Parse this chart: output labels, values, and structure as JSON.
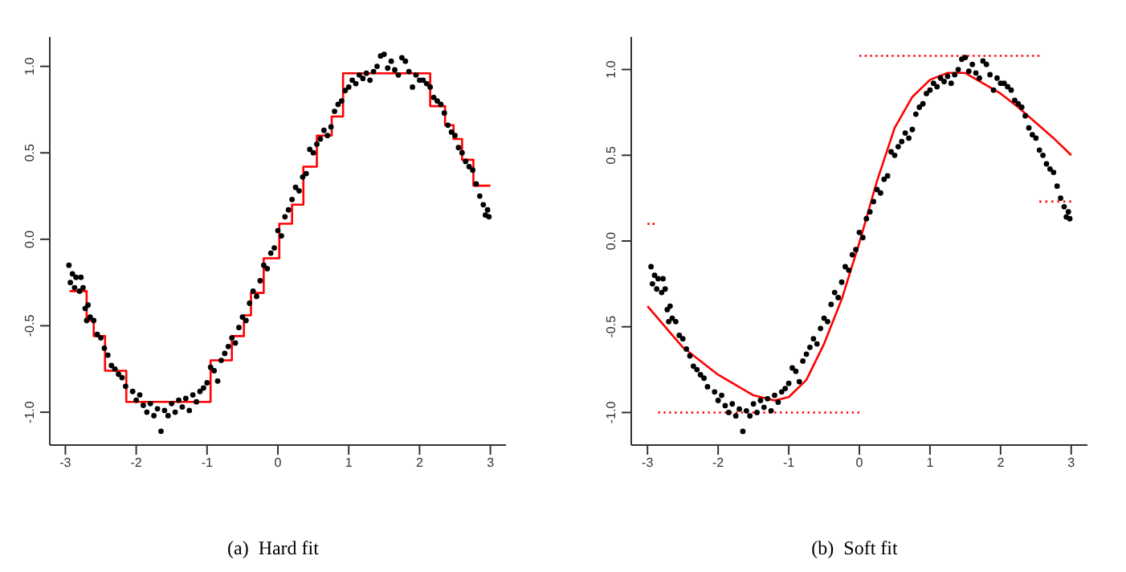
{
  "chart_data": [
    {
      "type": "scatter",
      "annotations": [
        "(a)  Hard fit"
      ],
      "xlim": [
        -3.22,
        3.22
      ],
      "ylim": [
        -1.19,
        1.17
      ],
      "xticks": [
        -3,
        -2,
        -1,
        0,
        1,
        2,
        3
      ],
      "yticks": [
        {
          "value": -1,
          "label": "-1.0"
        },
        {
          "value": -0.5,
          "label": "-0.5"
        },
        {
          "value": 0,
          "label": "0.0"
        },
        {
          "value": 0.5,
          "label": "0.5"
        },
        {
          "value": 1,
          "label": "1.0"
        }
      ],
      "series": [
        {
          "marker": "circle",
          "color": "#000000",
          "x": [
            -2.95,
            -2.93,
            -2.9,
            -2.87,
            -2.85,
            -2.8,
            -2.78,
            -2.75,
            -2.72,
            -2.7,
            -2.68,
            -2.65,
            -2.6,
            -2.55,
            -2.5,
            -2.45,
            -2.4,
            -2.35,
            -2.3,
            -2.25,
            -2.2,
            -2.15,
            -2.05,
            -2.0,
            -1.95,
            -1.9,
            -1.85,
            -1.8,
            -1.75,
            -1.7,
            -1.65,
            -1.6,
            -1.55,
            -1.5,
            -1.45,
            -1.4,
            -1.35,
            -1.3,
            -1.25,
            -1.2,
            -1.15,
            -1.1,
            -1.05,
            -1.0,
            -0.95,
            -0.9,
            -0.85,
            -0.8,
            -0.75,
            -0.7,
            -0.65,
            -0.6,
            -0.55,
            -0.5,
            -0.45,
            -0.4,
            -0.35,
            -0.3,
            -0.25,
            -0.2,
            -0.15,
            -0.1,
            -0.05,
            0.0,
            0.05,
            0.1,
            0.15,
            0.2,
            0.25,
            0.3,
            0.35,
            0.4,
            0.45,
            0.5,
            0.55,
            0.6,
            0.65,
            0.7,
            0.75,
            0.8,
            0.85,
            0.9,
            0.95,
            1.0,
            1.05,
            1.1,
            1.15,
            1.2,
            1.25,
            1.3,
            1.35,
            1.4,
            1.45,
            1.5,
            1.55,
            1.6,
            1.65,
            1.7,
            1.75,
            1.8,
            1.85,
            1.9,
            1.95,
            2.0,
            2.05,
            2.1,
            2.15,
            2.2,
            2.25,
            2.3,
            2.35,
            2.4,
            2.45,
            2.5,
            2.55,
            2.6,
            2.65,
            2.7,
            2.75,
            2.8,
            2.85,
            2.9,
            2.93,
            2.96,
            2.98
          ],
          "values": [
            -0.15,
            -0.25,
            -0.2,
            -0.28,
            -0.22,
            -0.3,
            -0.22,
            -0.28,
            -0.4,
            -0.47,
            -0.38,
            -0.45,
            -0.47,
            -0.55,
            -0.57,
            -0.63,
            -0.67,
            -0.73,
            -0.75,
            -0.78,
            -0.8,
            -0.85,
            -0.88,
            -0.93,
            -0.9,
            -0.96,
            -1.0,
            -0.95,
            -1.02,
            -0.98,
            -1.11,
            -0.99,
            -1.02,
            -0.95,
            -1.0,
            -0.93,
            -0.97,
            -0.92,
            -0.99,
            -0.9,
            -0.94,
            -0.88,
            -0.86,
            -0.83,
            -0.74,
            -0.76,
            -0.82,
            -0.7,
            -0.66,
            -0.62,
            -0.57,
            -0.6,
            -0.51,
            -0.45,
            -0.47,
            -0.37,
            -0.3,
            -0.33,
            -0.24,
            -0.15,
            -0.17,
            -0.08,
            -0.05,
            0.05,
            0.02,
            0.13,
            0.17,
            0.23,
            0.3,
            0.28,
            0.36,
            0.38,
            0.52,
            0.5,
            0.55,
            0.58,
            0.63,
            0.6,
            0.65,
            0.74,
            0.78,
            0.8,
            0.86,
            0.88,
            0.92,
            0.9,
            0.95,
            0.93,
            0.96,
            0.92,
            0.97,
            1.0,
            1.06,
            1.07,
            0.99,
            1.03,
            0.98,
            0.95,
            1.05,
            1.03,
            0.97,
            0.88,
            0.95,
            0.92,
            0.92,
            0.9,
            0.88,
            0.82,
            0.8,
            0.78,
            0.73,
            0.66,
            0.62,
            0.6,
            0.53,
            0.5,
            0.45,
            0.42,
            0.4,
            0.32,
            0.25,
            0.2,
            0.14,
            0.17,
            0.13
          ]
        },
        {
          "type": "step",
          "color": "#ff0000",
          "x": [
            -2.94,
            -2.7,
            -2.6,
            -2.44,
            -2.14,
            -0.95,
            -0.65,
            -0.48,
            -0.38,
            -0.2,
            0.02,
            0.2,
            0.36,
            0.55,
            0.76,
            0.92,
            2.15,
            2.36,
            2.48,
            2.6,
            2.76,
            3.0
          ],
          "values": [
            -0.3,
            -0.47,
            -0.56,
            -0.76,
            -0.94,
            -0.7,
            -0.56,
            -0.44,
            -0.31,
            -0.11,
            0.09,
            0.2,
            0.42,
            0.6,
            0.71,
            0.96,
            0.77,
            0.66,
            0.58,
            0.46,
            0.31,
            0.31
          ]
        }
      ]
    },
    {
      "type": "scatter",
      "annotations": [
        "(b)  Soft fit"
      ],
      "xlim": [
        -3.23,
        3.23
      ],
      "ylim": [
        -1.19,
        1.19
      ],
      "xticks": [
        -3,
        -2,
        -1,
        0,
        1,
        2,
        3
      ],
      "yticks": [
        {
          "value": -1,
          "label": "-1.0"
        },
        {
          "value": -0.5,
          "label": "-0.5"
        },
        {
          "value": 0,
          "label": "0.0"
        },
        {
          "value": 0.5,
          "label": "0.5"
        },
        {
          "value": 1,
          "label": "1.0"
        }
      ],
      "series": [
        {
          "marker": "circle",
          "color": "#000000",
          "x": [
            -2.95,
            -2.93,
            -2.9,
            -2.87,
            -2.85,
            -2.8,
            -2.78,
            -2.75,
            -2.72,
            -2.7,
            -2.68,
            -2.65,
            -2.6,
            -2.55,
            -2.5,
            -2.45,
            -2.4,
            -2.35,
            -2.3,
            -2.25,
            -2.2,
            -2.15,
            -2.05,
            -2.0,
            -1.95,
            -1.9,
            -1.85,
            -1.8,
            -1.75,
            -1.7,
            -1.65,
            -1.6,
            -1.55,
            -1.5,
            -1.45,
            -1.4,
            -1.35,
            -1.3,
            -1.25,
            -1.2,
            -1.15,
            -1.1,
            -1.05,
            -1.0,
            -0.95,
            -0.9,
            -0.85,
            -0.8,
            -0.75,
            -0.7,
            -0.65,
            -0.6,
            -0.55,
            -0.5,
            -0.45,
            -0.4,
            -0.35,
            -0.3,
            -0.25,
            -0.2,
            -0.15,
            -0.1,
            -0.05,
            0.0,
            0.05,
            0.1,
            0.15,
            0.2,
            0.25,
            0.3,
            0.35,
            0.4,
            0.45,
            0.5,
            0.55,
            0.6,
            0.65,
            0.7,
            0.75,
            0.8,
            0.85,
            0.9,
            0.95,
            1.0,
            1.05,
            1.1,
            1.15,
            1.2,
            1.25,
            1.3,
            1.35,
            1.4,
            1.45,
            1.5,
            1.55,
            1.6,
            1.65,
            1.7,
            1.75,
            1.8,
            1.85,
            1.9,
            1.95,
            2.0,
            2.05,
            2.1,
            2.15,
            2.2,
            2.25,
            2.3,
            2.35,
            2.4,
            2.45,
            2.5,
            2.55,
            2.6,
            2.65,
            2.7,
            2.75,
            2.8,
            2.85,
            2.9,
            2.93,
            2.96,
            2.98
          ],
          "values": [
            -0.15,
            -0.25,
            -0.2,
            -0.28,
            -0.22,
            -0.3,
            -0.22,
            -0.28,
            -0.4,
            -0.47,
            -0.38,
            -0.45,
            -0.47,
            -0.55,
            -0.57,
            -0.63,
            -0.67,
            -0.73,
            -0.75,
            -0.78,
            -0.8,
            -0.85,
            -0.88,
            -0.93,
            -0.9,
            -0.96,
            -1.0,
            -0.95,
            -1.02,
            -0.98,
            -1.11,
            -0.99,
            -1.02,
            -0.95,
            -1.0,
            -0.93,
            -0.97,
            -0.92,
            -0.99,
            -0.9,
            -0.94,
            -0.88,
            -0.86,
            -0.83,
            -0.74,
            -0.76,
            -0.82,
            -0.7,
            -0.66,
            -0.62,
            -0.57,
            -0.6,
            -0.51,
            -0.45,
            -0.47,
            -0.37,
            -0.3,
            -0.33,
            -0.24,
            -0.15,
            -0.17,
            -0.08,
            -0.05,
            0.05,
            0.02,
            0.13,
            0.17,
            0.23,
            0.3,
            0.28,
            0.36,
            0.38,
            0.52,
            0.5,
            0.55,
            0.58,
            0.63,
            0.6,
            0.65,
            0.74,
            0.78,
            0.8,
            0.86,
            0.88,
            0.92,
            0.9,
            0.95,
            0.93,
            0.96,
            0.92,
            0.97,
            1.0,
            1.06,
            1.07,
            0.99,
            1.03,
            0.98,
            0.95,
            1.05,
            1.03,
            0.97,
            0.88,
            0.95,
            0.92,
            0.92,
            0.9,
            0.88,
            0.82,
            0.8,
            0.78,
            0.73,
            0.66,
            0.62,
            0.6,
            0.53,
            0.5,
            0.45,
            0.42,
            0.4,
            0.32,
            0.25,
            0.2,
            0.14,
            0.17,
            0.13
          ]
        },
        {
          "type": "line",
          "color": "#ff0000",
          "x": [
            -3,
            -2.5,
            -2,
            -1.5,
            -1.2,
            -1,
            -0.75,
            -0.5,
            -0.25,
            0,
            0.25,
            0.5,
            0.75,
            1,
            1.25,
            1.5,
            1.75,
            2,
            2.25,
            2.5,
            2.75,
            3
          ],
          "values": [
            -0.38,
            -0.62,
            -0.78,
            -0.9,
            -0.93,
            -0.91,
            -0.81,
            -0.6,
            -0.34,
            -0.01,
            0.35,
            0.66,
            0.84,
            0.94,
            0.98,
            0.98,
            0.92,
            0.86,
            0.78,
            0.69,
            0.6,
            0.5
          ]
        },
        {
          "type": "line",
          "line_style": "dotted",
          "color": "#ff0000",
          "x": [
            -2.85,
            0
          ],
          "values": [
            -1.0,
            -1.0
          ]
        },
        {
          "type": "line",
          "line_style": "dotted",
          "color": "#ff0000",
          "x": [
            0,
            2.55
          ],
          "values": [
            1.08,
            1.08
          ]
        },
        {
          "type": "line",
          "line_style": "dotted",
          "color": "#ff0000",
          "x": [
            -3,
            -2.9
          ],
          "values": [
            0.1,
            0.1
          ]
        },
        {
          "type": "line",
          "line_style": "dotted",
          "color": "#ff0000",
          "x": [
            2.55,
            3
          ],
          "values": [
            0.23,
            0.23
          ]
        }
      ]
    }
  ]
}
